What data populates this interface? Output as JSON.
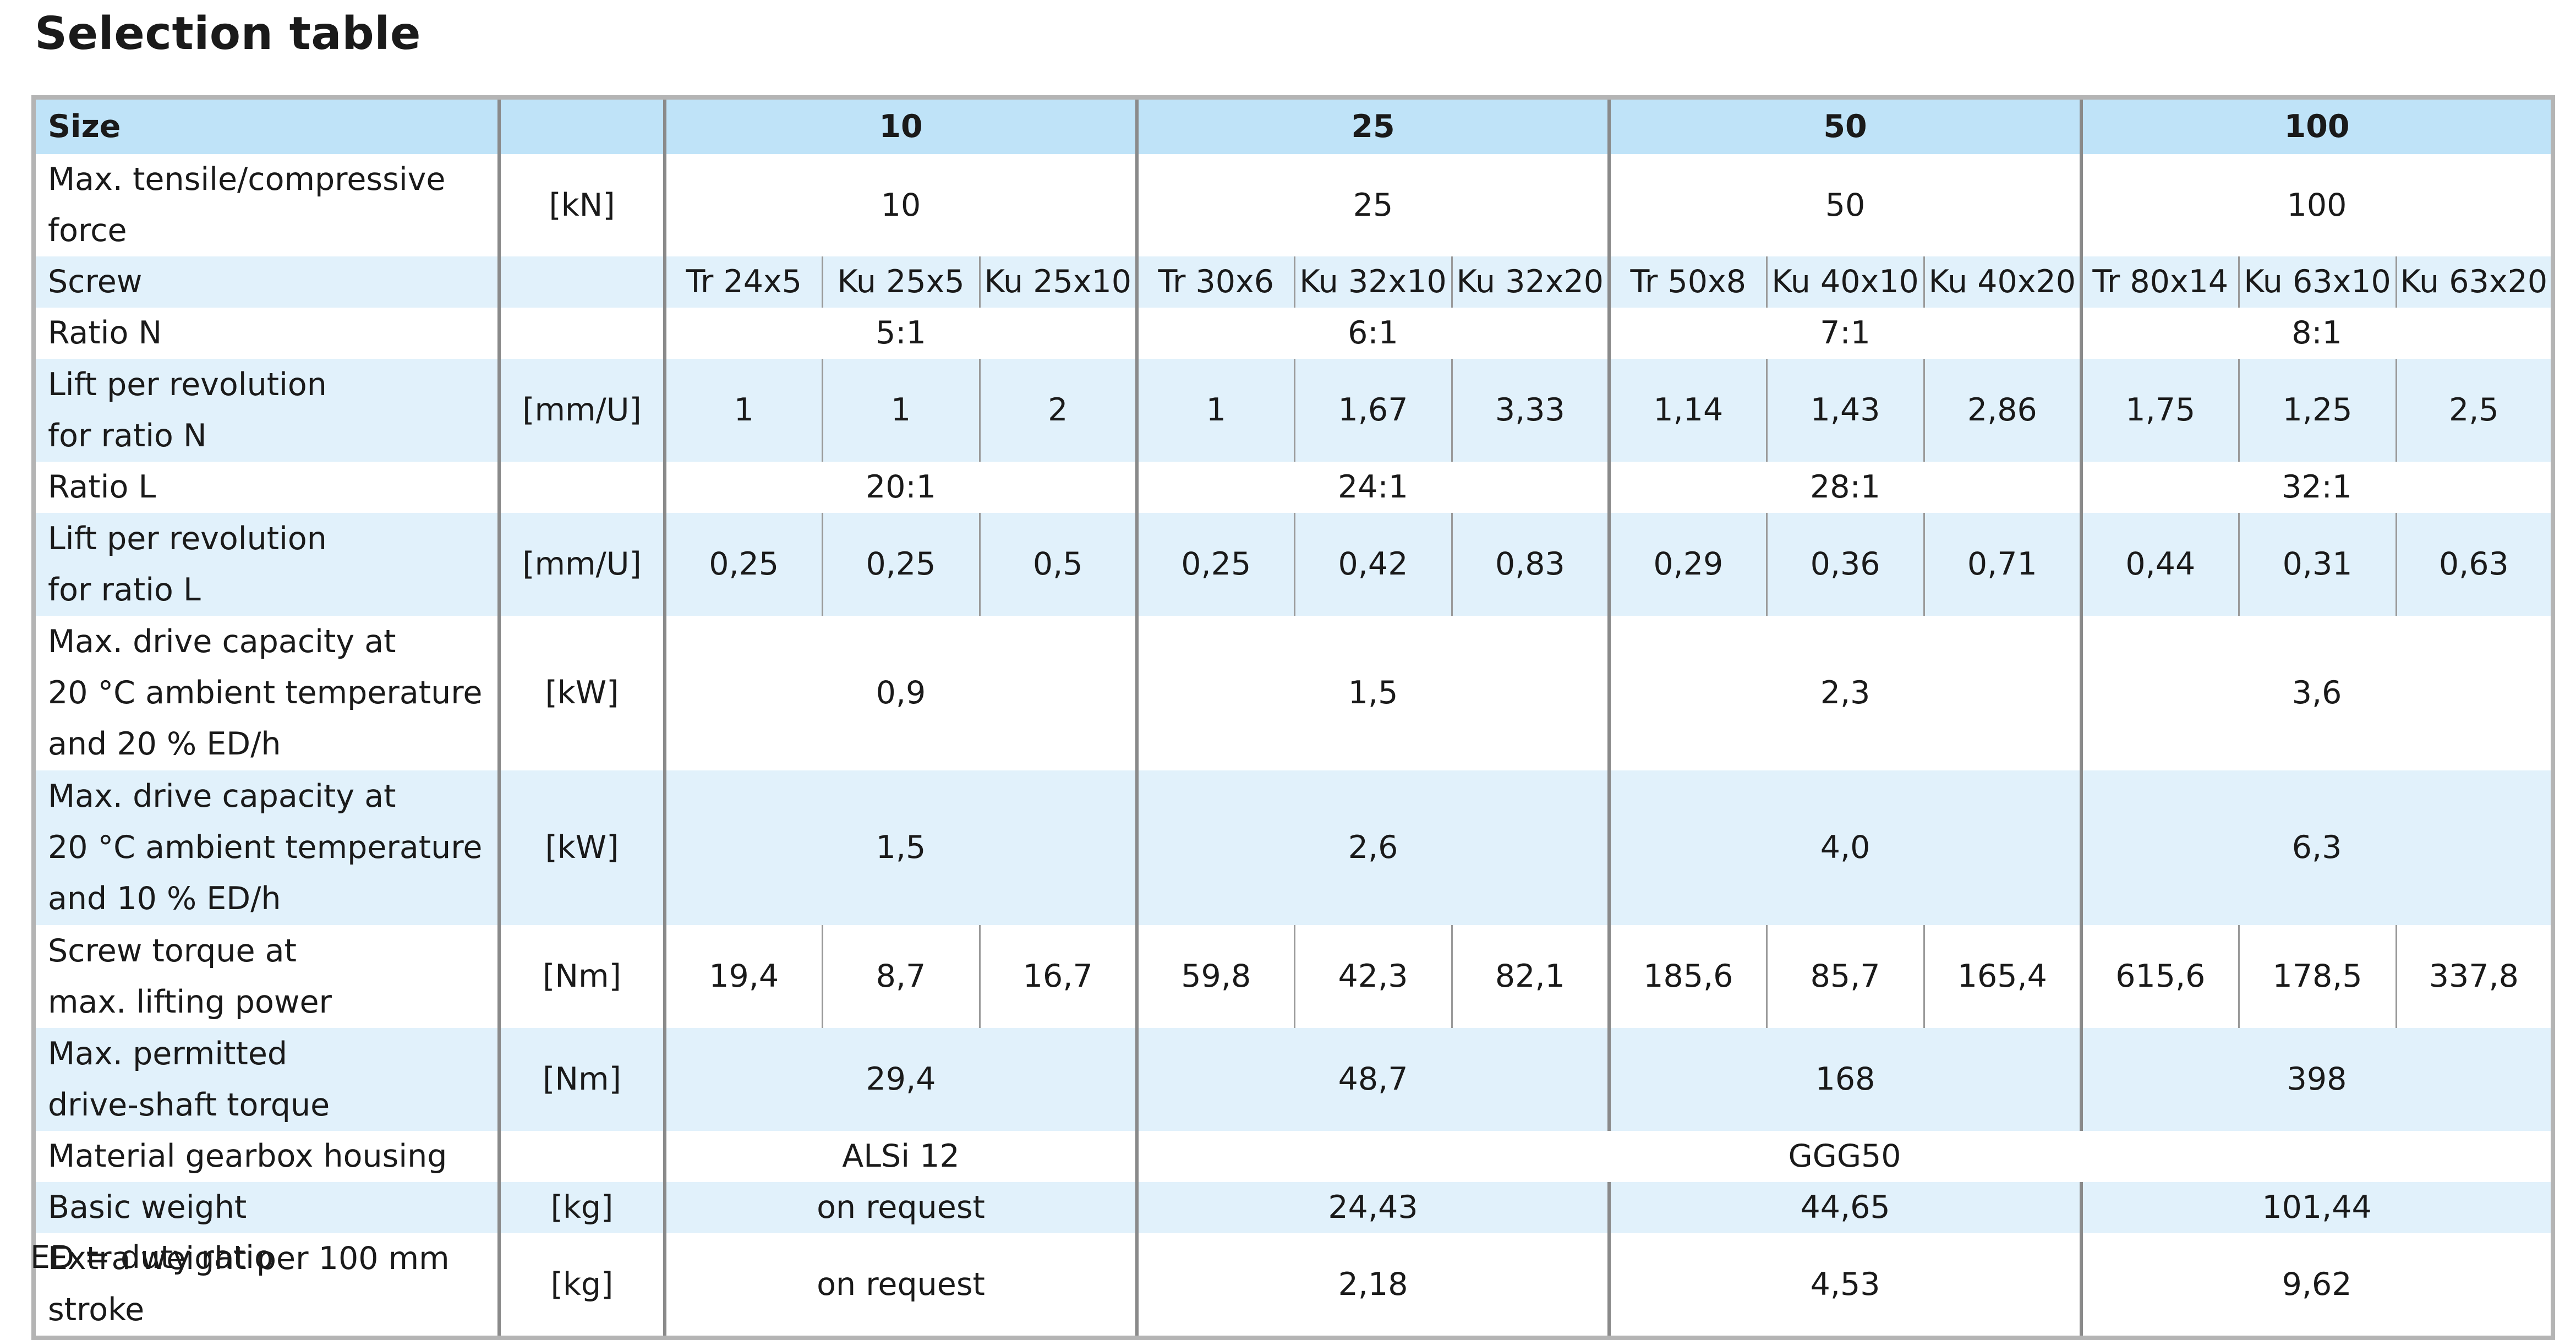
{
  "title": "Selection table",
  "header": {
    "size_label": "Size",
    "sizes": [
      "10",
      "25",
      "50",
      "100"
    ]
  },
  "rows": {
    "force": {
      "label": "Max. tensile/compressive force",
      "unit": "[kN]",
      "values": [
        "10",
        "25",
        "50",
        "100"
      ]
    },
    "screw": {
      "label": "Screw",
      "values": [
        "Tr 24x5",
        "Ku 25x5",
        "Ku 25x10",
        "Tr 30x6",
        "Ku 32x10",
        "Ku 32x20",
        "Tr 50x8",
        "Ku 40x10",
        "Ku 40x20",
        "Tr 80x14",
        "Ku 63x10",
        "Ku 63x20"
      ]
    },
    "ratio_n": {
      "label": "Ratio N",
      "values": [
        "5:1",
        "6:1",
        "7:1",
        "8:1"
      ]
    },
    "lift_n": {
      "label_lines": [
        "Lift per revolution",
        "for ratio N"
      ],
      "unit": "[mm/U]",
      "values": [
        "1",
        "1",
        "2",
        "1",
        "1,67",
        "3,33",
        "1,14",
        "1,43",
        "2,86",
        "1,75",
        "1,25",
        "2,5"
      ]
    },
    "ratio_l": {
      "label": "Ratio L",
      "values": [
        "20:1",
        "24:1",
        "28:1",
        "32:1"
      ]
    },
    "lift_l": {
      "label_lines": [
        "Lift per revolution",
        "for ratio L"
      ],
      "unit": "[mm/U]",
      "values": [
        "0,25",
        "0,25",
        "0,5",
        "0,25",
        "0,42",
        "0,83",
        "0,29",
        "0,36",
        "0,71",
        "0,44",
        "0,31",
        "0,63"
      ]
    },
    "drive_20": {
      "label_lines": [
        "Max. drive capacity at",
        "20 °C ambient temperature",
        "and  20 % ED/h"
      ],
      "unit": "[kW]",
      "values": [
        "0,9",
        "1,5",
        "2,3",
        "3,6"
      ]
    },
    "drive_10": {
      "label_lines": [
        "Max. drive capacity at",
        "20 °C ambient temperature",
        "and 10 % ED/h"
      ],
      "unit": "[kW]",
      "values": [
        "1,5",
        "2,6",
        "4,0",
        "6,3"
      ]
    },
    "screw_torque": {
      "label_lines": [
        "Screw torque at",
        "max. lifting power"
      ],
      "unit": "[Nm]",
      "values": [
        "19,4",
        "8,7",
        "16,7",
        "59,8",
        "42,3",
        "82,1",
        "185,6",
        "85,7",
        "165,4",
        "615,6",
        "178,5",
        "337,8"
      ]
    },
    "shaft_torque": {
      "label_lines": [
        "Max. permitted",
        "drive-shaft torque"
      ],
      "unit": "[Nm]",
      "values": [
        "29,4",
        "48,7",
        "168",
        "398"
      ]
    },
    "material": {
      "label": "Material gearbox housing",
      "values": [
        "ALSi 12",
        "GGG50"
      ]
    },
    "basic_weight": {
      "label": "Basic weight",
      "unit": "[kg]",
      "values": [
        "on request",
        "24,43",
        "44,65",
        "101,44"
      ]
    },
    "extra_weight": {
      "label": "Extra weight per 100 mm stroke",
      "unit": "[kg]",
      "values": [
        "on request",
        "2,18",
        "4,53",
        "9,62"
      ]
    }
  },
  "footnote": "ED = duty ratio",
  "colors": {
    "header_fill": "#bfe3f8",
    "band_fill": "#e1f1fb",
    "border": "#b4b4b4"
  }
}
